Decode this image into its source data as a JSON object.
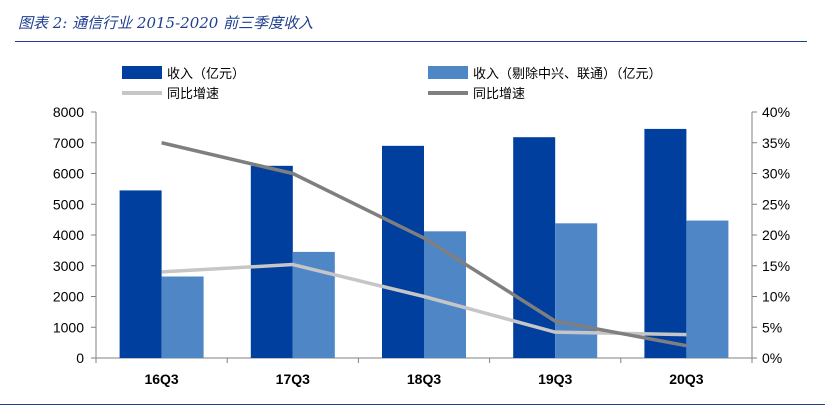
{
  "caption": "图表 2:  通信行业 2015-2020 前三季度收入",
  "colors": {
    "revenue": "#003f9e",
    "revenue_excl": "#4f86c6",
    "growth": "#c6c6c6",
    "growth_excl": "#7f7f7f",
    "rule": "#1f3f8f"
  },
  "chart_data": {
    "type": "bar",
    "categories": [
      "16Q3",
      "17Q3",
      "18Q3",
      "19Q3",
      "20Q3"
    ],
    "series": [
      {
        "name": "收入（亿元）",
        "kind": "bar",
        "axis": "left",
        "values": [
          5450,
          6250,
          6900,
          7180,
          7450
        ]
      },
      {
        "name": "收入（剔除中兴、联通）（亿元）",
        "kind": "bar",
        "axis": "left",
        "values": [
          2650,
          3450,
          4120,
          4380,
          4470
        ]
      },
      {
        "name": "同比增速",
        "kind": "line",
        "axis": "right",
        "values": [
          0.14,
          0.152,
          0.1,
          0.042,
          0.038
        ]
      },
      {
        "name": "同比增速",
        "kind": "line",
        "axis": "right",
        "values": [
          0.35,
          0.3,
          0.195,
          0.06,
          0.02
        ]
      }
    ],
    "y_left": {
      "min": 0,
      "max": 8000,
      "ticks": [
        "0",
        "1000",
        "2000",
        "3000",
        "4000",
        "5000",
        "6000",
        "7000",
        "8000"
      ]
    },
    "y_right": {
      "min": 0,
      "max": 0.4,
      "ticks": [
        "0%",
        "5%",
        "10%",
        "15%",
        "20%",
        "25%",
        "30%",
        "35%",
        "40%"
      ]
    },
    "grid": false,
    "legend": "top"
  }
}
